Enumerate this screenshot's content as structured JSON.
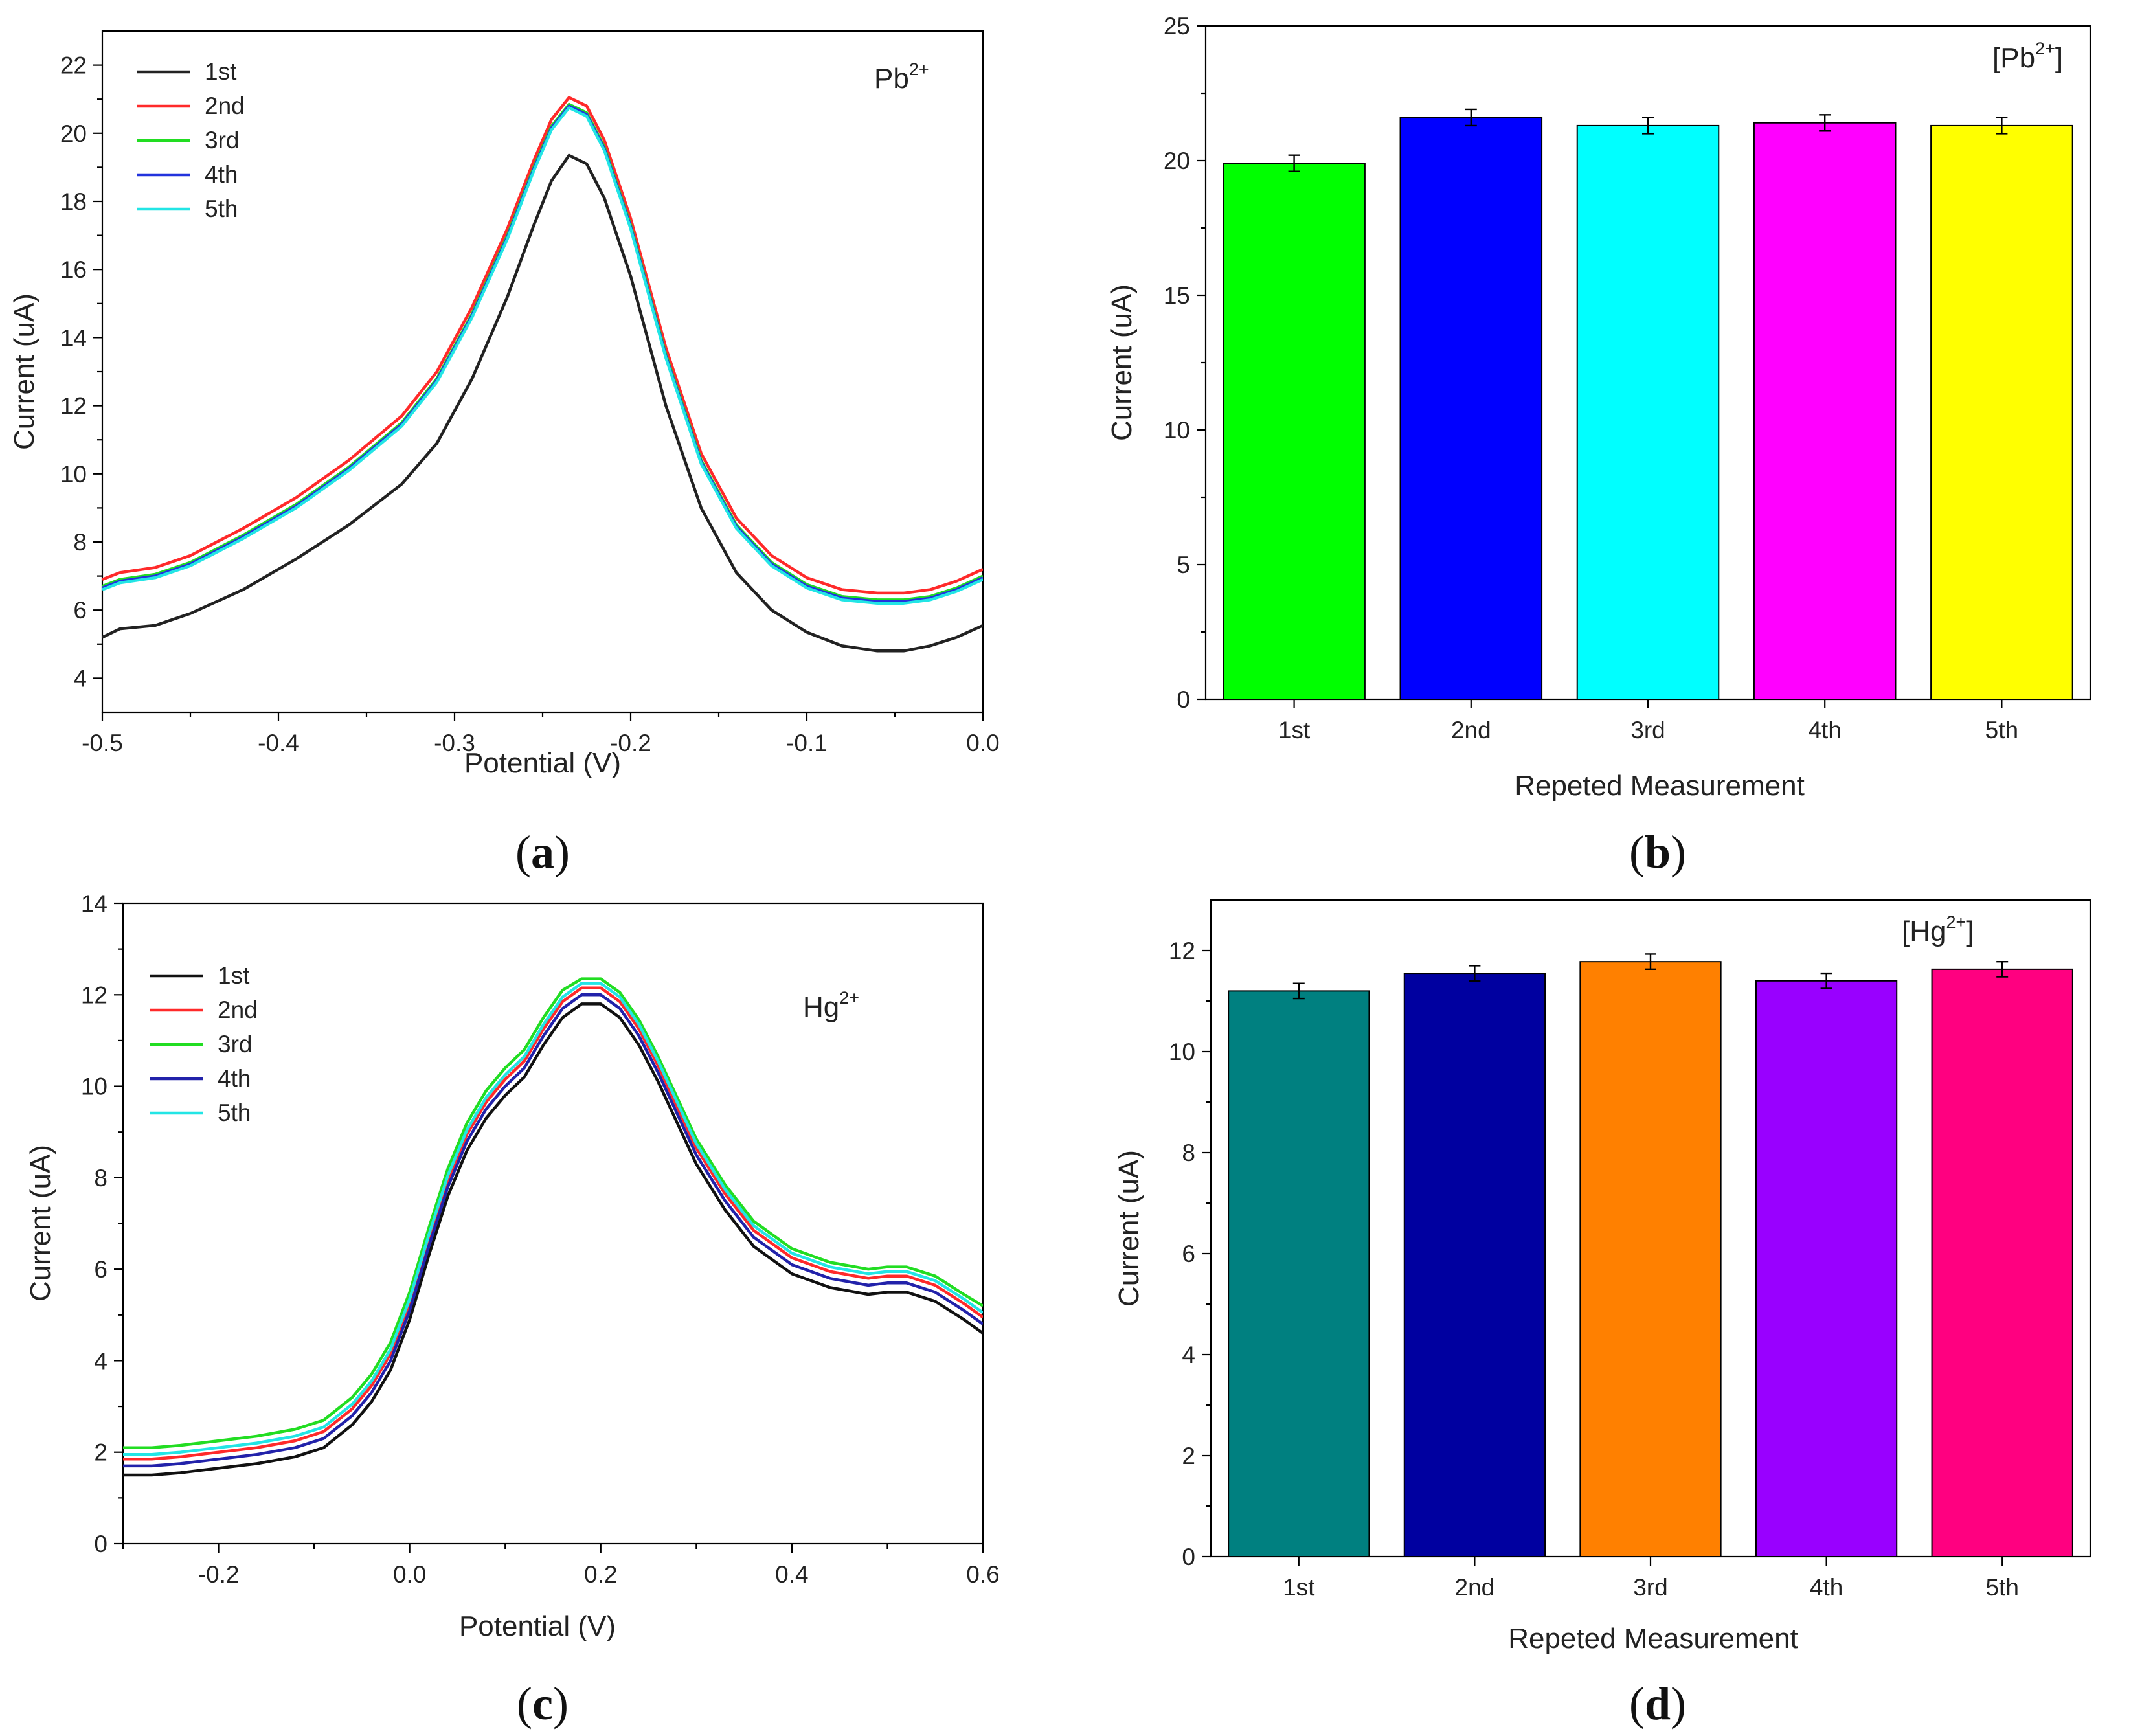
{
  "chart_data": [
    {
      "id": "a",
      "type": "line",
      "subfigure_label": "a",
      "xlabel": "Potential (V)",
      "ylabel": "Current (uA)",
      "xlim": [
        -0.5,
        0.0
      ],
      "ylim": [
        3,
        23
      ],
      "xticks": [
        -0.5,
        -0.4,
        -0.3,
        -0.2,
        -0.1,
        0.0
      ],
      "xtick_labels": [
        "-0.5",
        "-0.4",
        "-0.3",
        "-0.2",
        "-0.1",
        "0.0"
      ],
      "yticks": [
        4,
        6,
        8,
        10,
        12,
        14,
        16,
        18,
        20,
        22
      ],
      "ytick_labels": [
        "4",
        "6",
        "8",
        "10",
        "12",
        "14",
        "16",
        "18",
        "20",
        "22"
      ],
      "annotation": {
        "base": "Pb",
        "sup": "2+"
      },
      "legend_position": "top-left",
      "x": [
        -0.5,
        -0.49,
        -0.47,
        -0.45,
        -0.42,
        -0.39,
        -0.36,
        -0.33,
        -0.31,
        -0.29,
        -0.27,
        -0.255,
        -0.245,
        -0.235,
        -0.225,
        -0.215,
        -0.2,
        -0.18,
        -0.16,
        -0.14,
        -0.12,
        -0.1,
        -0.08,
        -0.06,
        -0.045,
        -0.03,
        -0.015,
        0.0
      ],
      "series": [
        {
          "name": "1st",
          "color": "#222222",
          "values": [
            5.2,
            5.45,
            5.55,
            5.9,
            6.6,
            7.5,
            8.5,
            9.7,
            10.9,
            12.8,
            15.2,
            17.3,
            18.6,
            19.35,
            19.1,
            18.1,
            15.8,
            12.0,
            9.0,
            7.1,
            6.0,
            5.35,
            4.95,
            4.8,
            4.8,
            4.95,
            5.2,
            5.55
          ]
        },
        {
          "name": "2nd",
          "color": "#ff2a2a",
          "values": [
            6.9,
            7.1,
            7.25,
            7.6,
            8.4,
            9.3,
            10.4,
            11.7,
            13.0,
            14.9,
            17.2,
            19.2,
            20.4,
            21.05,
            20.8,
            19.8,
            17.5,
            13.7,
            10.6,
            8.7,
            7.6,
            6.95,
            6.6,
            6.5,
            6.5,
            6.6,
            6.85,
            7.2
          ]
        },
        {
          "name": "3rd",
          "color": "#22dd22",
          "values": [
            6.7,
            6.9,
            7.05,
            7.4,
            8.2,
            9.1,
            10.2,
            11.5,
            12.8,
            14.7,
            17.0,
            19.0,
            20.2,
            20.85,
            20.6,
            19.6,
            17.3,
            13.5,
            10.4,
            8.5,
            7.4,
            6.75,
            6.4,
            6.3,
            6.3,
            6.4,
            6.65,
            7.0
          ]
        },
        {
          "name": "4th",
          "color": "#2233dd",
          "values": [
            6.65,
            6.85,
            7.0,
            7.35,
            8.15,
            9.05,
            10.15,
            11.45,
            12.75,
            14.65,
            16.95,
            18.95,
            20.15,
            20.8,
            20.55,
            19.55,
            17.25,
            13.45,
            10.35,
            8.45,
            7.35,
            6.7,
            6.35,
            6.25,
            6.25,
            6.35,
            6.6,
            6.95
          ]
        },
        {
          "name": "5th",
          "color": "#22e5e5",
          "values": [
            6.6,
            6.8,
            6.95,
            7.3,
            8.1,
            9.0,
            10.1,
            11.4,
            12.7,
            14.6,
            16.9,
            18.9,
            20.1,
            20.75,
            20.5,
            19.5,
            17.2,
            13.4,
            10.3,
            8.4,
            7.3,
            6.65,
            6.3,
            6.2,
            6.2,
            6.3,
            6.55,
            6.9
          ]
        }
      ]
    },
    {
      "id": "b",
      "type": "bar",
      "subfigure_label": "b",
      "xlabel": "Repeted Measurement",
      "ylabel": "Current (uA)",
      "ylim": [
        0,
        25
      ],
      "yticks": [
        0,
        5,
        10,
        15,
        20,
        25
      ],
      "ytick_labels": [
        "0",
        "5",
        "10",
        "15",
        "20",
        "25"
      ],
      "annotation": {
        "base": "[Pb",
        "sup": "2+",
        "tail": "]"
      },
      "categories": [
        "1st",
        "2nd",
        "3rd",
        "4th",
        "5th"
      ],
      "values": [
        19.9,
        21.6,
        21.3,
        21.4,
        21.3
      ],
      "errors": [
        0.3,
        0.3,
        0.3,
        0.3,
        0.3
      ],
      "colors": [
        "#00ff00",
        "#0000ff",
        "#00ffff",
        "#ff00ff",
        "#ffff00"
      ]
    },
    {
      "id": "c",
      "type": "line",
      "subfigure_label": "c",
      "xlabel": "Potential (V)",
      "ylabel": "Current (uA)",
      "xlim": [
        -0.3,
        0.6
      ],
      "ylim": [
        0,
        14
      ],
      "xticks": [
        -0.2,
        0.0,
        0.2,
        0.4,
        0.6
      ],
      "xtick_labels": [
        "-0.2",
        "0.0",
        "0.2",
        "0.4",
        "0.6"
      ],
      "yticks": [
        0,
        2,
        4,
        6,
        8,
        10,
        12,
        14
      ],
      "ytick_labels": [
        "0",
        "2",
        "4",
        "6",
        "8",
        "10",
        "12",
        "14"
      ],
      "annotation": {
        "base": "Hg",
        "sup": "2+"
      },
      "legend_position": "top-left",
      "x": [
        -0.3,
        -0.27,
        -0.24,
        -0.2,
        -0.16,
        -0.12,
        -0.09,
        -0.06,
        -0.04,
        -0.02,
        0.0,
        0.02,
        0.04,
        0.06,
        0.08,
        0.1,
        0.12,
        0.14,
        0.16,
        0.18,
        0.2,
        0.22,
        0.24,
        0.26,
        0.28,
        0.3,
        0.33,
        0.36,
        0.4,
        0.44,
        0.48,
        0.5,
        0.52,
        0.55,
        0.58,
        0.6
      ],
      "series": [
        {
          "name": "1st",
          "color": "#111111",
          "values": [
            1.5,
            1.5,
            1.55,
            1.65,
            1.75,
            1.9,
            2.1,
            2.6,
            3.1,
            3.8,
            4.9,
            6.3,
            7.6,
            8.6,
            9.3,
            9.8,
            10.2,
            10.9,
            11.5,
            11.8,
            11.8,
            11.5,
            10.9,
            10.1,
            9.2,
            8.3,
            7.3,
            6.5,
            5.9,
            5.6,
            5.45,
            5.5,
            5.5,
            5.3,
            4.9,
            4.6
          ]
        },
        {
          "name": "2nd",
          "color": "#ff2a2a",
          "values": [
            1.85,
            1.85,
            1.9,
            2.0,
            2.1,
            2.25,
            2.45,
            2.95,
            3.45,
            4.15,
            5.25,
            6.65,
            7.95,
            8.95,
            9.65,
            10.15,
            10.55,
            11.25,
            11.85,
            12.15,
            12.15,
            11.85,
            11.25,
            10.45,
            9.55,
            8.65,
            7.65,
            6.85,
            6.25,
            5.95,
            5.8,
            5.85,
            5.85,
            5.65,
            5.25,
            4.95
          ]
        },
        {
          "name": "3rd",
          "color": "#22dd22",
          "values": [
            2.1,
            2.1,
            2.15,
            2.25,
            2.35,
            2.5,
            2.7,
            3.2,
            3.7,
            4.4,
            5.5,
            6.9,
            8.2,
            9.2,
            9.9,
            10.4,
            10.8,
            11.5,
            12.1,
            12.35,
            12.35,
            12.05,
            11.45,
            10.65,
            9.75,
            8.85,
            7.85,
            7.05,
            6.45,
            6.15,
            6.0,
            6.05,
            6.05,
            5.85,
            5.45,
            5.2
          ]
        },
        {
          "name": "4th",
          "color": "#2222aa",
          "values": [
            1.7,
            1.7,
            1.75,
            1.85,
            1.95,
            2.1,
            2.3,
            2.8,
            3.3,
            4.0,
            5.1,
            6.5,
            7.8,
            8.8,
            9.5,
            10.0,
            10.4,
            11.1,
            11.7,
            12.0,
            12.0,
            11.7,
            11.1,
            10.3,
            9.4,
            8.5,
            7.5,
            6.7,
            6.1,
            5.8,
            5.65,
            5.7,
            5.7,
            5.5,
            5.1,
            4.8
          ]
        },
        {
          "name": "5th",
          "color": "#22e5e5",
          "values": [
            1.95,
            1.95,
            2.0,
            2.1,
            2.2,
            2.35,
            2.55,
            3.05,
            3.55,
            4.25,
            5.35,
            6.75,
            8.05,
            9.05,
            9.75,
            10.25,
            10.65,
            11.35,
            11.95,
            12.25,
            12.25,
            11.95,
            11.35,
            10.55,
            9.65,
            8.75,
            7.75,
            6.95,
            6.35,
            6.05,
            5.9,
            5.95,
            5.95,
            5.75,
            5.35,
            5.05
          ]
        }
      ]
    },
    {
      "id": "d",
      "type": "bar",
      "subfigure_label": "d",
      "xlabel": "Repeted Measurement",
      "ylabel": "Current (uA)",
      "ylim": [
        0,
        13
      ],
      "yticks": [
        0,
        2,
        4,
        6,
        8,
        10,
        12
      ],
      "ytick_labels": [
        "0",
        "2",
        "4",
        "6",
        "8",
        "10",
        "12"
      ],
      "annotation": {
        "base": "[Hg",
        "sup": "2+",
        "tail": "]"
      },
      "categories": [
        "1st",
        "2nd",
        "3rd",
        "4th",
        "5th"
      ],
      "values": [
        11.2,
        11.55,
        11.78,
        11.4,
        11.63
      ],
      "errors": [
        0.15,
        0.15,
        0.15,
        0.15,
        0.15
      ],
      "colors": [
        "#008080",
        "#0000a0",
        "#ff8000",
        "#9900ff",
        "#ff0080"
      ]
    }
  ]
}
